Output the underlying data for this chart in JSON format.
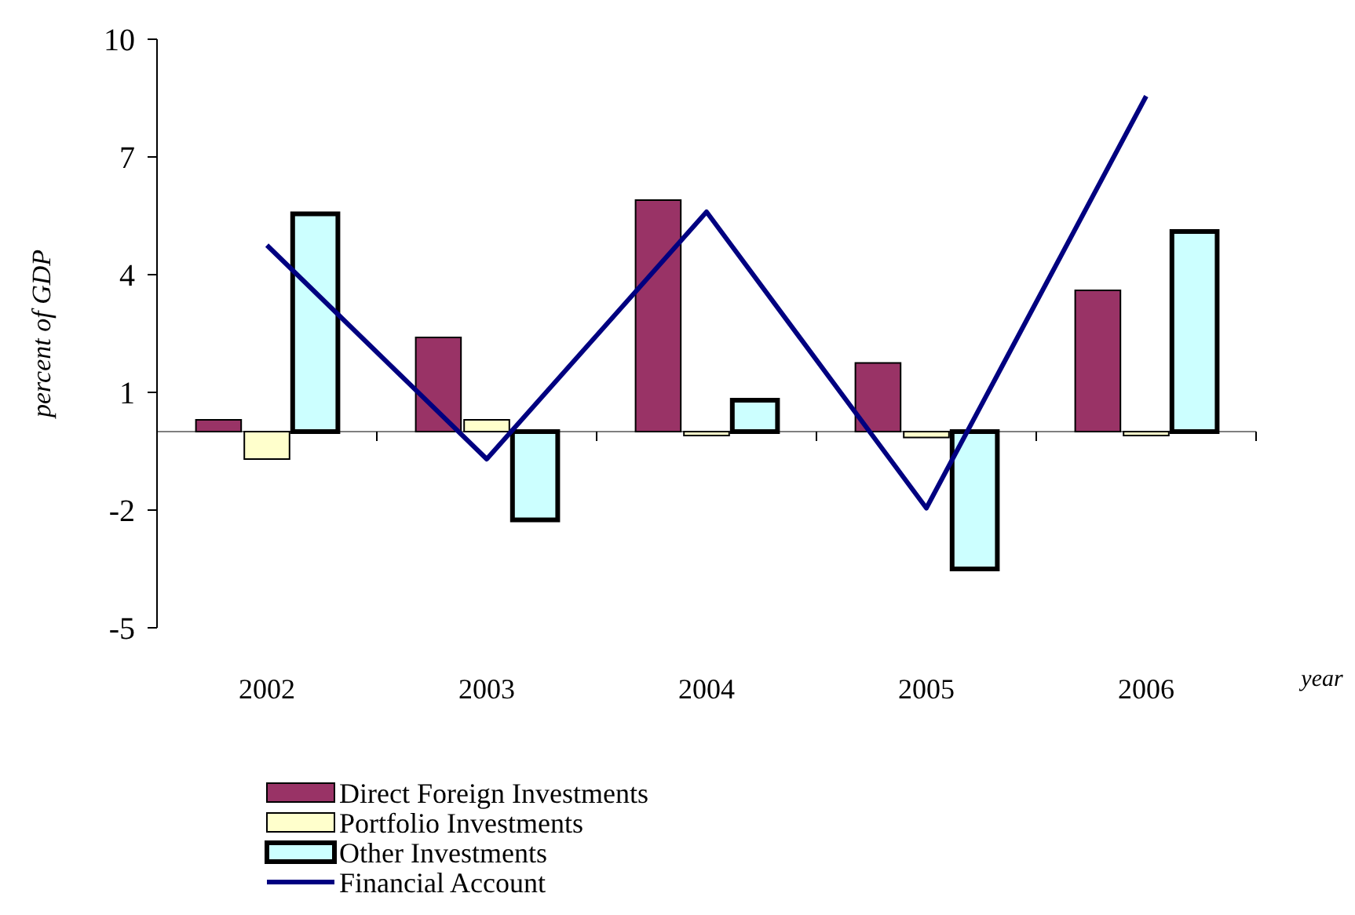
{
  "chart_data": {
    "type": "bar",
    "xlabel": "year",
    "ylabel": "percent of GDP",
    "categories": [
      "2002",
      "2003",
      "2004",
      "2005",
      "2006"
    ],
    "ylim": [
      -5,
      10
    ],
    "yticks": [
      -5,
      -2,
      1,
      4,
      7,
      10
    ],
    "legend": "bottom",
    "grid": false,
    "series": [
      {
        "name": "Direct Foreign Investments",
        "color": "#993366",
        "values": [
          0.3,
          2.4,
          5.9,
          1.75,
          3.6
        ]
      },
      {
        "name": "Portfolio Investments",
        "color": "#ffffcc",
        "values": [
          -0.7,
          0.3,
          -0.1,
          -0.15,
          -0.1
        ]
      },
      {
        "name": "Other Investments",
        "color": "#ccffff",
        "values": [
          5.55,
          -2.25,
          0.8,
          -3.5,
          5.1
        ]
      },
      {
        "name": "Financial Account",
        "type": "line",
        "color": "#000080",
        "values": [
          4.75,
          -0.7,
          5.6,
          -1.95,
          8.55
        ]
      }
    ]
  }
}
